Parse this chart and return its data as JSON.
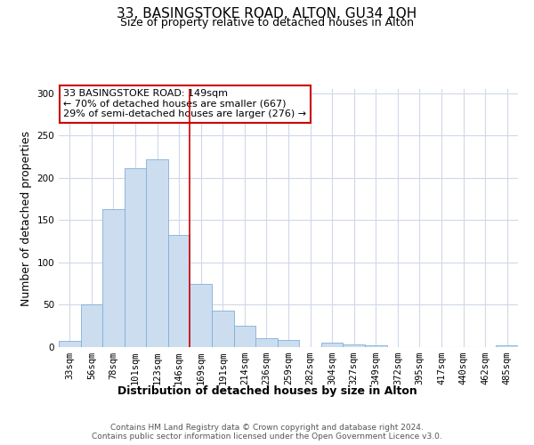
{
  "title": "33, BASINGSTOKE ROAD, ALTON, GU34 1QH",
  "subtitle": "Size of property relative to detached houses in Alton",
  "xlabel": "Distribution of detached houses by size in Alton",
  "ylabel": "Number of detached properties",
  "bar_labels": [
    "33sqm",
    "56sqm",
    "78sqm",
    "101sqm",
    "123sqm",
    "146sqm",
    "169sqm",
    "191sqm",
    "214sqm",
    "236sqm",
    "259sqm",
    "282sqm",
    "304sqm",
    "327sqm",
    "349sqm",
    "372sqm",
    "395sqm",
    "417sqm",
    "440sqm",
    "462sqm",
    "485sqm"
  ],
  "bar_values": [
    7,
    50,
    163,
    211,
    222,
    133,
    75,
    43,
    25,
    11,
    8,
    0,
    5,
    3,
    2,
    0,
    0,
    0,
    0,
    0,
    2
  ],
  "bar_color": "#ccddf0",
  "bar_edge_color": "#7fb0d8",
  "vline_x": 5.5,
  "vline_color": "#cc0000",
  "annotation_text": "33 BASINGSTOKE ROAD: 149sqm\n← 70% of detached houses are smaller (667)\n29% of semi-detached houses are larger (276) →",
  "annotation_box_color": "#ffffff",
  "annotation_box_edge": "#cc0000",
  "ylim": [
    0,
    305
  ],
  "yticks": [
    0,
    50,
    100,
    150,
    200,
    250,
    300
  ],
  "footer1": "Contains HM Land Registry data © Crown copyright and database right 2024.",
  "footer2": "Contains public sector information licensed under the Open Government Licence v3.0.",
  "bg_color": "#ffffff",
  "grid_color": "#d0d8e8",
  "title_fontsize": 11,
  "subtitle_fontsize": 9,
  "axis_label_fontsize": 9,
  "tick_fontsize": 7.5,
  "annotation_fontsize": 8,
  "footer_fontsize": 6.5
}
